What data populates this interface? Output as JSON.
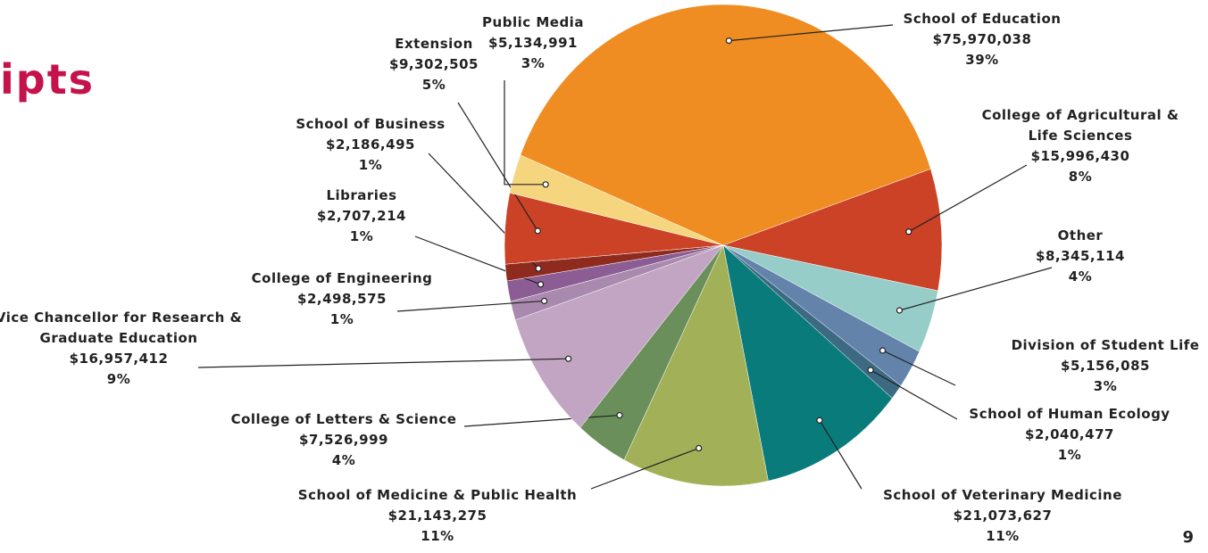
{
  "page_title": "ipts",
  "page_number": "9",
  "chart_data": {
    "type": "pie",
    "categories": [
      "School of Education",
      "College of Agricultural & Life Sciences",
      "Other",
      "Division of Student Life",
      "School of Human Ecology",
      "School of Veterinary Medicine",
      "School of Medicine & Public Health",
      "College of Letters & Science",
      "Vice Chancellor for Research & Graduate Education",
      "College of Engineering",
      "Libraries",
      "School of Business",
      "Extension",
      "Public Media"
    ],
    "values": [
      75970038,
      15996430,
      8345114,
      5156085,
      2040477,
      21073627,
      21143275,
      7526999,
      16957412,
      2498575,
      2707214,
      2186495,
      9302505,
      5134991
    ],
    "value_labels": [
      "$75,970,038",
      "$15,996,430",
      "$8,345,114",
      "$5,156,085",
      "$2,040,477",
      "$21,073,627",
      "$21,143,275",
      "$7,526,999",
      "$16,957,412",
      "$2,498,575",
      "$2,707,214",
      "$2,186,495",
      "$9,302,505",
      "$5,134,991"
    ],
    "percent_labels": [
      "39%",
      "8%",
      "4%",
      "3%",
      "1%",
      "11%",
      "11%",
      "4%",
      "9%",
      "1%",
      "1%",
      "1%",
      "5%",
      "3%"
    ],
    "colors": [
      "#ef8d22",
      "#cb4227",
      "#97cdc8",
      "#6383ab",
      "#3c6a82",
      "#0a7b7b",
      "#a2b157",
      "#6a8f5a",
      "#c1a5c3",
      "#a98aae",
      "#8c5d95",
      "#8e2a1e",
      "#cb4227",
      "#f5d57e"
    ]
  }
}
